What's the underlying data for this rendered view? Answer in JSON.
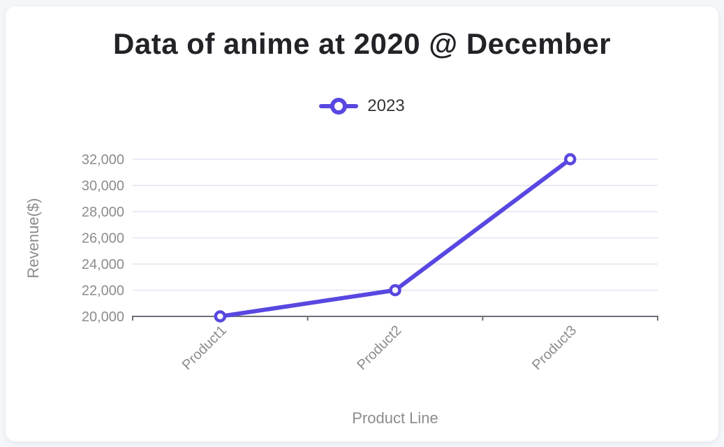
{
  "card": {
    "title": "Data of anime at 2020 @ December"
  },
  "chart_data": {
    "type": "line",
    "title": "Data of anime at 2020 @ December",
    "categories": [
      "Product1",
      "Product2",
      "Product3"
    ],
    "series": [
      {
        "name": "2023",
        "values": [
          20000,
          22000,
          32000
        ]
      }
    ],
    "xlabel": "Product Line",
    "ylabel": "Revenue($)",
    "ylim": [
      20000,
      32000
    ],
    "ytick_interval": 2000,
    "ytick_labels": [
      "20,000",
      "22,000",
      "24,000",
      "26,000",
      "28,000",
      "30,000",
      "32,000"
    ],
    "grid": true,
    "legend_position": "top-center",
    "marker_style": "hollow-circle",
    "colors": {
      "line": "#5847e0",
      "grid": "#e3e3f2",
      "axis": "#6e7079",
      "tick_text": "#8c8c8c",
      "axis_name_text": "#8c8c8c",
      "title_text": "#222227",
      "legend_text": "#333333",
      "card_bg": "#ffffff",
      "page_bg": "#f5f6f9"
    }
  }
}
